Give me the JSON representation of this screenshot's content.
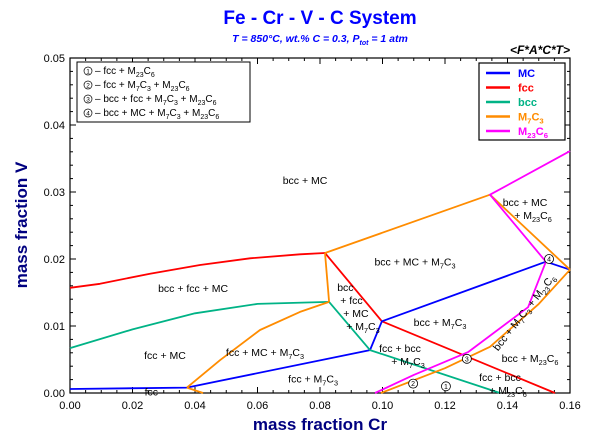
{
  "chart_data": {
    "type": "line",
    "title": "Fe - Cr - V - C System",
    "subtitle": {
      "pre": "T = 850°C, wt.% C = 0.3, P",
      "sub": "tot",
      "post": " = 1 atm"
    },
    "logo_text": "<F*A*C*T>",
    "xlabel": "mass fraction Cr",
    "ylabel": "mass fraction V",
    "xlim": [
      0,
      0.16
    ],
    "ylim": [
      0,
      0.05
    ],
    "xticks": [
      "0.00",
      "0.02",
      "0.04",
      "0.06",
      "0.08",
      "0.10",
      "0.12",
      "0.14",
      "0.16"
    ],
    "yticks": [
      "0.00",
      "0.01",
      "0.02",
      "0.03",
      "0.04",
      "0.05"
    ],
    "grid": false,
    "colors": {
      "MC": "#0000ff",
      "fcc": "#ff0000",
      "bcc": "#00b386",
      "M7C3": "#ff8c00",
      "M23C6": "#ff00ff",
      "title": "#0000ff",
      "axis_label": "#000080"
    },
    "legend": {
      "placement": "top-right",
      "entries": [
        {
          "label": "MC",
          "series": "MC"
        },
        {
          "label": "fcc",
          "series": "fcc"
        },
        {
          "label": "bcc",
          "series": "bcc"
        },
        {
          "label": "M7C3",
          "series": "M7C3"
        },
        {
          "label": "M23C6",
          "series": "M23C6"
        }
      ]
    },
    "key": {
      "placement": "top-left",
      "entries": [
        {
          "num": "1",
          "label": "– fcc + M23C6"
        },
        {
          "num": "2",
          "label": "– fcc + M7C3 + M23C6"
        },
        {
          "num": "3",
          "label": "– bcc + fcc + M7C3 + M23C6"
        },
        {
          "num": "4",
          "label": "– bcc + MC + M7C3 + M23C6"
        }
      ]
    },
    "series": [
      {
        "name": "fcc",
        "segments": [
          [
            [
              0,
              0.0157
            ],
            [
              0.0096,
              0.0163
            ],
            [
              0.0256,
              0.0178
            ],
            [
              0.0416,
              0.0191
            ],
            [
              0.0576,
              0.0201
            ],
            [
              0.0736,
              0.0207
            ],
            [
              0.0816,
              0.0209
            ]
          ],
          [
            [
              0.0816,
              0.0209
            ],
            [
              0.0998,
              0.0107
            ],
            [
              0.1552,
              0
            ]
          ]
        ]
      },
      {
        "name": "MC",
        "segments": [
          [
            [
              0,
              0.0006
            ],
            [
              0.0374,
              0.0008
            ],
            [
              0.096,
              0.0064
            ],
            [
              0.0998,
              0.0107
            ],
            [
              0.1523,
              0.0196
            ],
            [
              0.16,
              0.0184
            ]
          ]
        ]
      },
      {
        "name": "bcc",
        "segments": [
          [
            [
              0,
              0.0067
            ],
            [
              0.02,
              0.0095
            ],
            [
              0.04,
              0.0119
            ],
            [
              0.06,
              0.0133
            ],
            [
              0.0829,
              0.0136
            ],
            [
              0.096,
              0.0064
            ],
            [
              0.1376,
              0
            ]
          ]
        ]
      },
      {
        "name": "M7C3",
        "segments": [
          [
            [
              0.0374,
              0.0008
            ],
            [
              0.0426,
              0
            ]
          ],
          [
            [
              0.0374,
              0.0008
            ],
            [
              0.048,
              0.0049
            ],
            [
              0.0608,
              0.0094
            ],
            [
              0.0736,
              0.0121
            ],
            [
              0.0829,
              0.0136
            ]
          ],
          [
            [
              0.0829,
              0.0136
            ],
            [
              0.0816,
              0.0209
            ]
          ],
          [
            [
              0.0816,
              0.0209
            ],
            [
              0.1344,
              0.0296
            ]
          ],
          [
            [
              0.1344,
              0.0296
            ],
            [
              0.16,
              0.0184
            ]
          ],
          [
            [
              0.0995,
              0
            ],
            [
              0.12,
              0.0037
            ],
            [
              0.1344,
              0.0069
            ],
            [
              0.15,
              0.0133
            ],
            [
              0.16,
              0.0184
            ]
          ]
        ]
      },
      {
        "name": "M23C6",
        "segments": [
          [
            [
              0.0976,
              0
            ],
            [
              0.11,
              0.0027
            ],
            [
              0.1274,
              0.0061
            ],
            [
              0.1466,
              0.0128
            ],
            [
              0.1523,
              0.0196
            ]
          ],
          [
            [
              0.1523,
              0.0196
            ],
            [
              0.1344,
              0.0296
            ],
            [
              0.16,
              0.0361
            ]
          ]
        ]
      }
    ],
    "annotations": [
      {
        "text": [
          "bcc + MC"
        ],
        "x": 0.0752,
        "y": 0.0318
      },
      {
        "text": [
          "bcc + fcc + MC"
        ],
        "x": 0.0394,
        "y": 0.0157
      },
      {
        "text": [
          "fcc + MC"
        ],
        "x": 0.0304,
        "y": 0.0057
      },
      {
        "text": [
          "fcc"
        ],
        "x": 0.026,
        "y": 0.0002
      },
      {
        "text": [
          "fcc + MC + M7C3"
        ],
        "x": 0.0624,
        "y": 0.0061
      },
      {
        "text": [
          "fcc + M7C3"
        ],
        "x": 0.0778,
        "y": 0.0022
      },
      {
        "text": [
          "bcc",
          "+ fcc",
          "+ MC",
          "+ M7C3"
        ],
        "x": 0.0855,
        "y": 0.0158,
        "align": "start"
      },
      {
        "text": [
          "bcc + MC + M7C3"
        ],
        "x": 0.1104,
        "y": 0.0196
      },
      {
        "text": [
          "bcc + M7C3"
        ],
        "x": 0.1184,
        "y": 0.0106
      },
      {
        "text": [
          "fcc + bcc",
          "+ M7C3"
        ],
        "x": 0.1056,
        "y": 0.0067
      },
      {
        "text": [
          "bcc + MC",
          "+ M23C6"
        ],
        "x": 0.1456,
        "y": 0.0285
      },
      {
        "text": [
          "bcc + M23C6"
        ],
        "x": 0.1472,
        "y": 0.0052
      },
      {
        "text": [
          "fcc + bcc",
          "+ M23C6"
        ],
        "x": 0.1376,
        "y": 0.0024
      },
      {
        "text": [
          "bcc + M7C3 + M23C6"
        ],
        "x": 0.1445,
        "y": 0.0098,
        "rotate": -52
      }
    ],
    "markers": [
      {
        "num": "1",
        "x": 0.1203,
        "y": 0.001
      },
      {
        "num": "2",
        "x": 0.1098,
        "y": 0.0014
      },
      {
        "num": "3",
        "x": 0.127,
        "y": 0.0051
      },
      {
        "num": "4",
        "x": 0.1533,
        "y": 0.02
      }
    ]
  }
}
